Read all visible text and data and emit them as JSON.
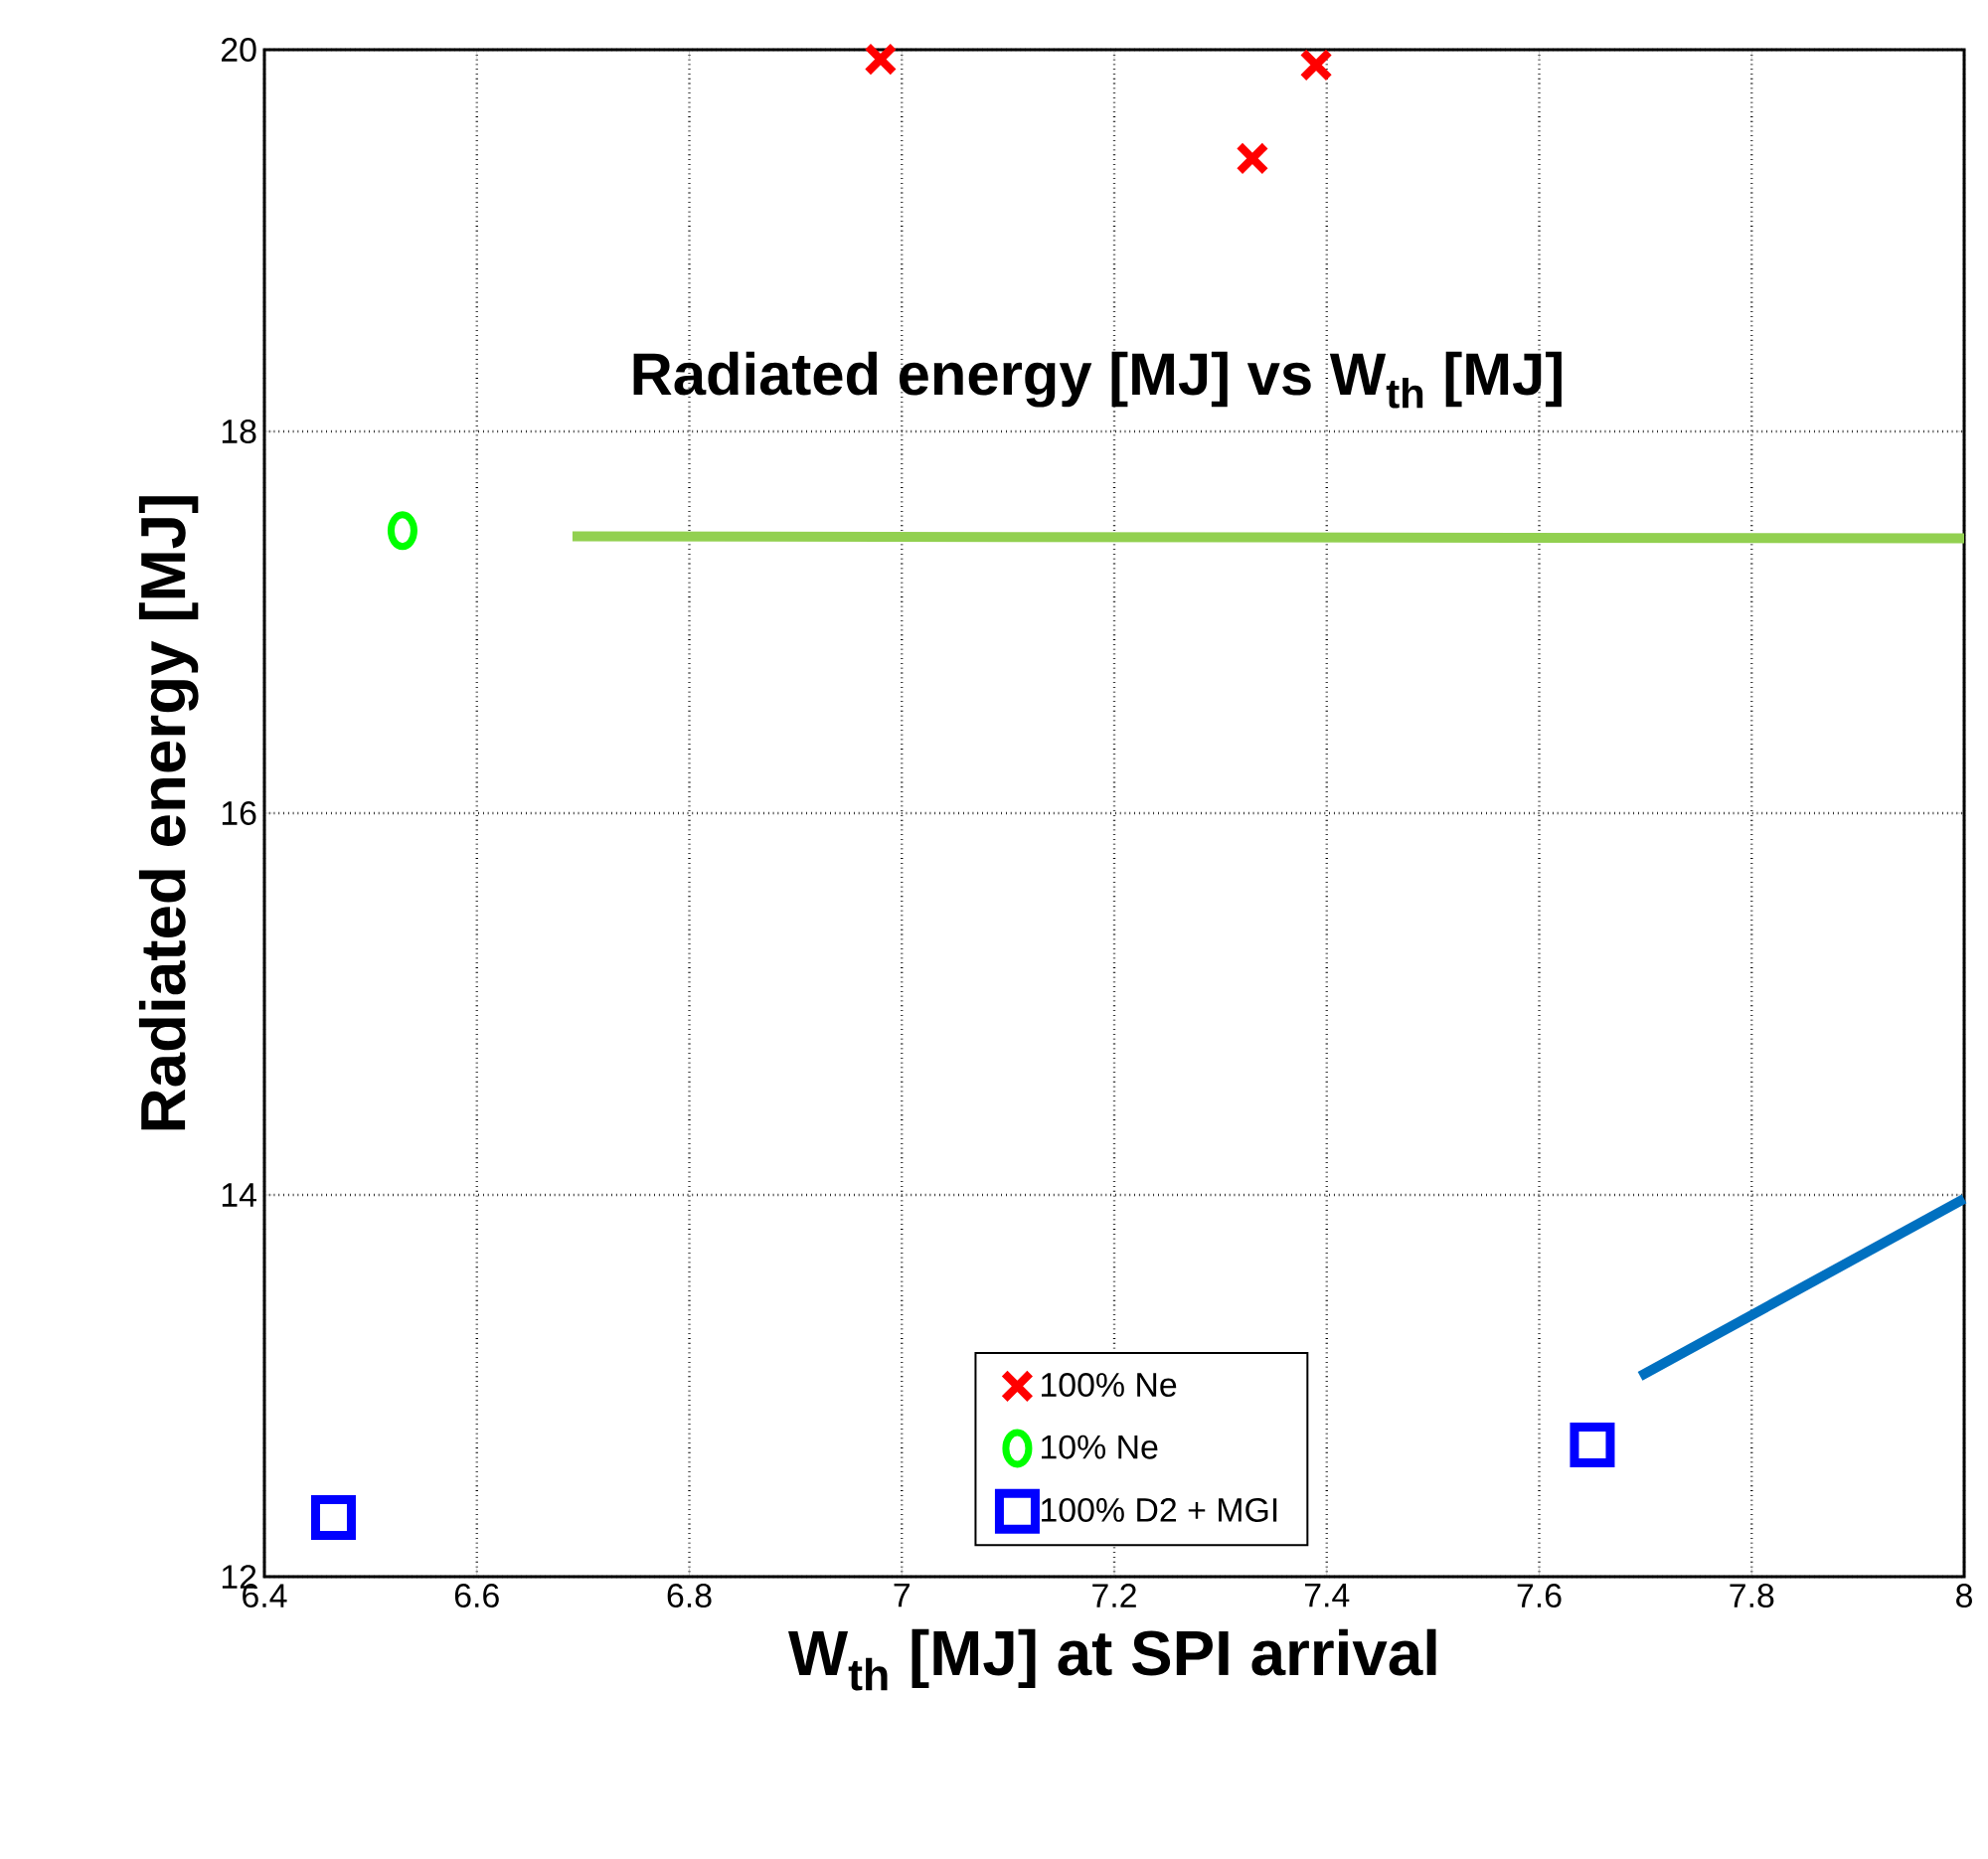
{
  "chart_data": {
    "type": "scatter",
    "title": "Radiated energy [MJ] vs W$_{th}$ [MJ]",
    "xlabel": "W$_{th}$ [MJ] at SPI arrival",
    "ylabel": "Radiated energy [MJ]",
    "xlim": [
      6.4,
      8
    ],
    "ylim": [
      12,
      20
    ],
    "xticks": [
      6.4,
      6.6,
      6.8,
      7,
      7.2,
      7.4,
      7.6,
      7.8,
      8
    ],
    "yticks": [
      12,
      14,
      16,
      18,
      20
    ],
    "grid": true,
    "legend": "bottom",
    "series": [
      {
        "name": "100% Ne",
        "color": "#ff0000",
        "marker": "cross",
        "x": [
          6.98,
          7.33,
          7.39
        ],
        "values": [
          19.95,
          19.43,
          19.92
        ]
      },
      {
        "name": "10% Ne",
        "color": "#00ff00",
        "marker": "circle",
        "x": [
          6.53
        ],
        "values": [
          17.48
        ]
      },
      {
        "name": "100% D2 + MGI",
        "color": "#0000ff",
        "marker": "square",
        "x": [
          6.465,
          7.65
        ],
        "values": [
          12.31,
          12.69
        ]
      },
      {
        "type": "line",
        "color": "#92d050",
        "line_style": "solid",
        "x": [
          6.69,
          8
        ],
        "values": [
          17.45,
          17.44
        ]
      },
      {
        "type": "line",
        "color": "#0070c0",
        "line_style": "solid",
        "x": [
          7.695,
          8
        ],
        "values": [
          13.05,
          13.98
        ]
      }
    ]
  }
}
